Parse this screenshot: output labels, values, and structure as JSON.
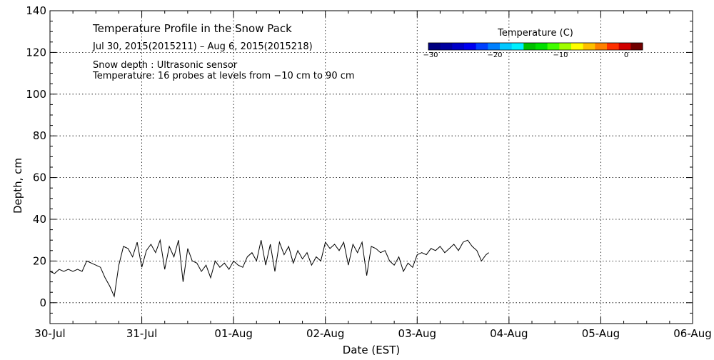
{
  "chart_data": {
    "type": "line",
    "title": "Temperature Profile in the Snow Pack",
    "subtitle": "Jul 30, 2015(2015211) – Aug  6, 2015(2015218)",
    "notes": [
      "Snow depth : Ultrasonic sensor",
      "Temperature: 16 probes at levels from −10 cm to 90 cm"
    ],
    "xlabel": "Date (EST)",
    "ylabel": "Depth, cm",
    "xlim": [
      0,
      7
    ],
    "ylim": [
      -10,
      140
    ],
    "x_ticks": [
      {
        "value": 0,
        "label": "30-Jul"
      },
      {
        "value": 1,
        "label": "31-Jul"
      },
      {
        "value": 2,
        "label": "01-Aug"
      },
      {
        "value": 3,
        "label": "02-Aug"
      },
      {
        "value": 4,
        "label": "03-Aug"
      },
      {
        "value": 5,
        "label": "04-Aug"
      },
      {
        "value": 6,
        "label": "05-Aug"
      },
      {
        "value": 7,
        "label": "06-Aug"
      }
    ],
    "y_ticks": [
      0,
      20,
      40,
      60,
      80,
      100,
      120,
      140
    ],
    "grid": true,
    "series": [
      {
        "color": "#000000",
        "x": [
          0.0,
          0.05,
          0.1,
          0.15,
          0.2,
          0.25,
          0.3,
          0.35,
          0.4,
          0.45,
          0.5,
          0.55,
          0.6,
          0.65,
          0.7,
          0.75,
          0.8,
          0.85,
          0.9,
          0.95,
          1.0,
          1.05,
          1.1,
          1.15,
          1.2,
          1.25,
          1.3,
          1.35,
          1.4,
          1.45,
          1.5,
          1.55,
          1.6,
          1.65,
          1.7,
          1.75,
          1.8,
          1.85,
          1.9,
          1.95,
          2.0,
          2.05,
          2.1,
          2.15,
          2.2,
          2.25,
          2.3,
          2.35,
          2.4,
          2.45,
          2.5,
          2.55,
          2.6,
          2.65,
          2.7,
          2.75,
          2.8,
          2.85,
          2.9,
          2.95,
          3.0,
          3.05,
          3.1,
          3.15,
          3.2,
          3.25,
          3.3,
          3.35,
          3.4,
          3.45,
          3.5,
          3.55,
          3.6,
          3.65,
          3.7,
          3.75,
          3.8,
          3.85,
          3.9,
          3.95,
          4.0,
          4.05,
          4.1,
          4.15,
          4.2,
          4.25,
          4.3,
          4.35,
          4.4,
          4.45,
          4.5,
          4.55,
          4.6,
          4.65,
          4.7,
          4.75,
          4.78
        ],
        "y": [
          15,
          14,
          16,
          15,
          16,
          15,
          16,
          15,
          20,
          19,
          18,
          17,
          12,
          8,
          3,
          18,
          27,
          26,
          22,
          29,
          17,
          25,
          28,
          24,
          30,
          16,
          27,
          22,
          30,
          10,
          26,
          20,
          19,
          15,
          18,
          12,
          20,
          17,
          19,
          16,
          20,
          18,
          17,
          22,
          24,
          20,
          30,
          18,
          28,
          15,
          29,
          23,
          27,
          19,
          25,
          21,
          24,
          18,
          22,
          20,
          29,
          26,
          28,
          25,
          29,
          18,
          28,
          24,
          29,
          13,
          27,
          26,
          24,
          25,
          20,
          18,
          22,
          15,
          19,
          17,
          23,
          24,
          23,
          26,
          25,
          27,
          24,
          26,
          28,
          25,
          29,
          30,
          27,
          25,
          20,
          23,
          24
        ]
      }
    ],
    "colorbar": {
      "title": "Temperature (C)",
      "ticks": [
        "−30",
        "−20",
        "−10",
        "0"
      ],
      "colors": [
        "#00007f",
        "#00009f",
        "#0000c8",
        "#0000f0",
        "#0040ff",
        "#0080ff",
        "#00c8ff",
        "#00f0ff",
        "#00c000",
        "#00e000",
        "#40ff00",
        "#a0ff00",
        "#ffff00",
        "#ffc000",
        "#ff8000",
        "#ff3000",
        "#d00000",
        "#700000"
      ]
    }
  }
}
